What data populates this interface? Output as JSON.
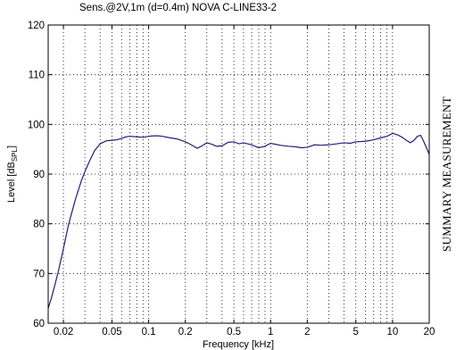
{
  "chart_data": {
    "type": "line",
    "title": "Sens.@2V,1m (d=0.4m)   NOVA C-LINE33-2",
    "xlabel": "Frequency [kHz]",
    "ylabel_main": "Level [dB",
    "ylabel_sub": "SPL",
    "ylabel_end": "]",
    "x_scale": "log",
    "xlim": [
      0.015,
      20
    ],
    "ylim": [
      60,
      120
    ],
    "grid": true,
    "x_ticks": [
      {
        "value": 0.02,
        "label": "0.02"
      },
      {
        "value": 0.05,
        "label": "0.05"
      },
      {
        "value": 0.1,
        "label": "0.1"
      },
      {
        "value": 0.2,
        "label": "0.2"
      },
      {
        "value": 0.5,
        "label": "0.5"
      },
      {
        "value": 1,
        "label": "1"
      },
      {
        "value": 2,
        "label": "2"
      },
      {
        "value": 5,
        "label": "5"
      },
      {
        "value": 10,
        "label": "10"
      },
      {
        "value": 20,
        "label": "20"
      }
    ],
    "x_minor_grid": [
      0.02,
      0.03,
      0.04,
      0.05,
      0.06,
      0.07,
      0.08,
      0.09,
      0.1,
      0.2,
      0.3,
      0.4,
      0.5,
      0.6,
      0.7,
      0.8,
      0.9,
      1,
      2,
      3,
      4,
      5,
      6,
      7,
      8,
      9,
      10,
      20
    ],
    "y_ticks": [
      {
        "value": 60,
        "label": "60"
      },
      {
        "value": 70,
        "label": "70"
      },
      {
        "value": 80,
        "label": "80"
      },
      {
        "value": 90,
        "label": "90"
      },
      {
        "value": 100,
        "label": "100"
      },
      {
        "value": 110,
        "label": "110"
      },
      {
        "value": 120,
        "label": "120"
      }
    ],
    "series": [
      {
        "color": "#1f1f7a",
        "x": [
          0.015,
          0.016,
          0.018,
          0.02,
          0.022,
          0.025,
          0.028,
          0.03,
          0.033,
          0.036,
          0.04,
          0.045,
          0.05,
          0.055,
          0.06,
          0.065,
          0.07,
          0.08,
          0.09,
          0.1,
          0.11,
          0.12,
          0.13,
          0.15,
          0.17,
          0.2,
          0.22,
          0.25,
          0.27,
          0.3,
          0.33,
          0.36,
          0.4,
          0.45,
          0.5,
          0.55,
          0.6,
          0.7,
          0.8,
          0.9,
          1.0,
          1.1,
          1.2,
          1.4,
          1.6,
          1.8,
          2.0,
          2.3,
          2.6,
          3.0,
          3.5,
          4.0,
          4.5,
          5.0,
          6.0,
          7.0,
          8.0,
          9.0,
          10,
          11,
          12,
          13,
          14,
          15,
          16,
          17,
          18,
          20
        ],
        "y": [
          63.0,
          65.2,
          70.0,
          75.0,
          79.8,
          84.8,
          88.6,
          90.5,
          92.8,
          94.7,
          96.1,
          96.7,
          96.8,
          96.9,
          97.2,
          97.5,
          97.6,
          97.5,
          97.4,
          97.6,
          97.7,
          97.7,
          97.6,
          97.3,
          97.1,
          96.5,
          96.0,
          95.2,
          95.6,
          96.3,
          96.0,
          95.6,
          95.7,
          96.4,
          96.5,
          96.1,
          96.3,
          95.9,
          95.3,
          95.6,
          96.2,
          96.0,
          95.8,
          95.6,
          95.5,
          95.3,
          95.4,
          95.9,
          95.8,
          95.9,
          96.1,
          96.3,
          96.2,
          96.5,
          96.6,
          96.9,
          97.3,
          97.6,
          98.2,
          97.9,
          97.4,
          96.8,
          96.3,
          96.8,
          97.6,
          97.8,
          96.6,
          94.0
        ]
      }
    ]
  },
  "side_label": "SUMMARY MEASUREMENT"
}
